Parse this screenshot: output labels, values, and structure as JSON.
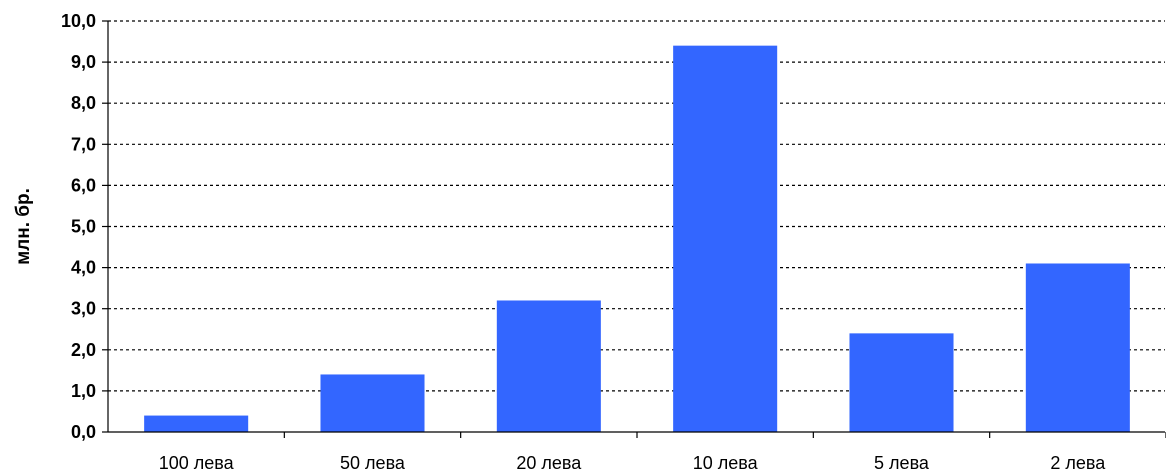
{
  "chart_data": {
    "type": "bar",
    "title": "",
    "xlabel": "",
    "ylabel": "млн. бр.",
    "categories": [
      "100 лева",
      "50 лева",
      "20 лева",
      "10 лева",
      "5 лева",
      "2 лева"
    ],
    "values": [
      0.4,
      1.4,
      3.2,
      9.4,
      2.4,
      4.1
    ],
    "ylim": [
      0,
      10
    ],
    "yticks": [
      "0,0",
      "1,0",
      "2,0",
      "3,0",
      "4,0",
      "5,0",
      "6,0",
      "7,0",
      "8,0",
      "9,0",
      "10,0"
    ],
    "grid": true,
    "grid_style": "dotted",
    "legend": "none",
    "bar_color": "#3366ff"
  }
}
